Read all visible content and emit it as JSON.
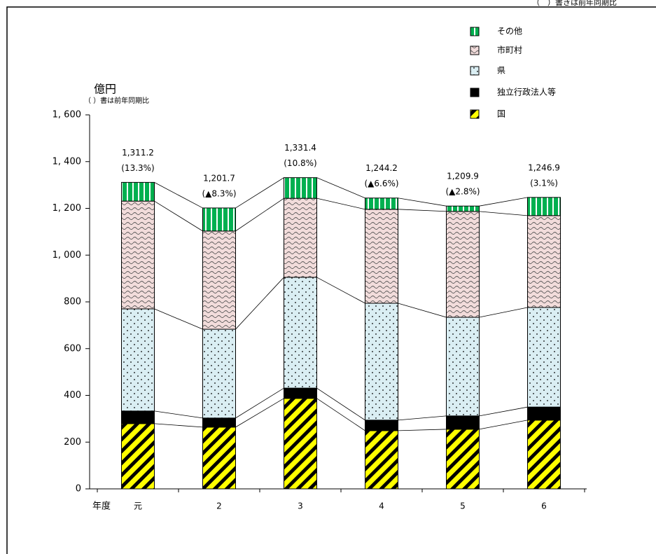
{
  "chart_data": {
    "type": "stacked-bar",
    "note": "（　）書きは前年同期比",
    "y_label": "億円",
    "y_sublabel": "（ ）書は前年同期比",
    "x_label": "年度",
    "categories": [
      "元",
      "2",
      "3",
      "4",
      "5",
      "6"
    ],
    "series": [
      {
        "name": "国",
        "color": "#ffff00",
        "values": [
          279,
          264,
          387,
          249,
          255,
          294
        ]
      },
      {
        "name": "独立行政法人等",
        "color": "#000000",
        "values": [
          54,
          39,
          44,
          45,
          57,
          56
        ]
      },
      {
        "name": "県",
        "color": "#daeef3",
        "values": [
          437,
          380,
          474,
          500,
          422,
          426
        ]
      },
      {
        "name": "市町村",
        "color": "#f2dcdb",
        "values": [
          461,
          420,
          338,
          402,
          453,
          393
        ]
      },
      {
        "name": "その他",
        "color": "#00b050",
        "values": [
          80.2,
          98.7,
          88.4,
          48.2,
          22.9,
          77.9
        ]
      }
    ],
    "totals": [
      1311.2,
      1201.7,
      1331.4,
      1244.2,
      1209.9,
      1246.9
    ],
    "total_labels": [
      "1,311.2",
      "1,201.7",
      "1,331.4",
      "1,244.2",
      "1,209.9",
      "1,246.9"
    ],
    "changes": [
      13.3,
      -8.3,
      10.8,
      -6.6,
      -2.8,
      3.1
    ],
    "change_labels": [
      "(13.3%)",
      "(▲8.3%)",
      "(10.8%)",
      "(▲6.6%)",
      "(▲2.8%)",
      "(3.1%)"
    ],
    "ylim": [
      0,
      1600
    ],
    "yticks": [
      0,
      200,
      400,
      600,
      800,
      {
        "value": 1000,
        "label": "1, 000"
      },
      {
        "value": 1200,
        "label": "1, 200"
      },
      {
        "value": 1400,
        "label": "1, 400"
      },
      {
        "value": 1600,
        "label": "1, 600"
      }
    ],
    "legend": "top-right"
  }
}
